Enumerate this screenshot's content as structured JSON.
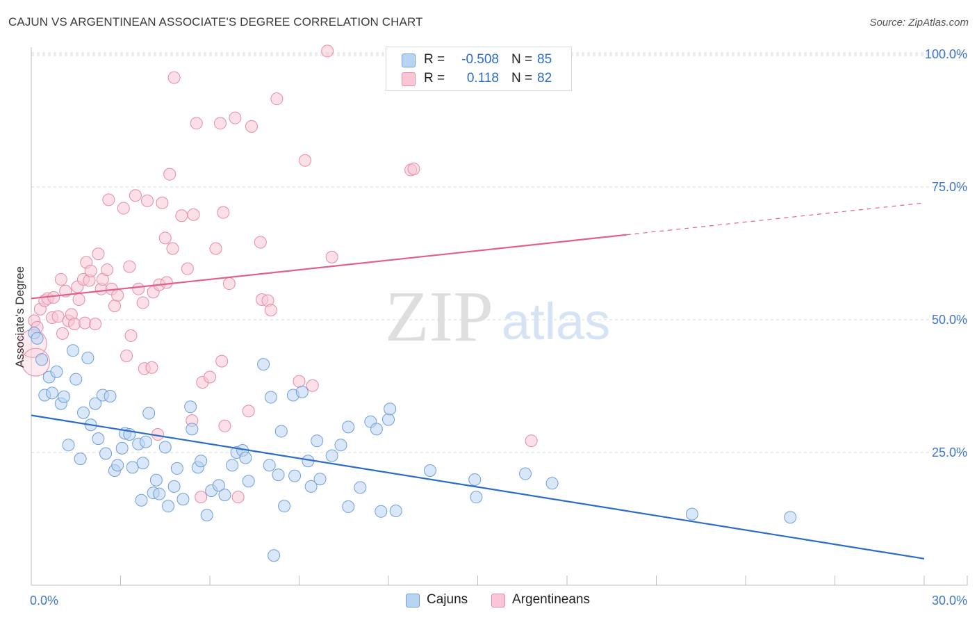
{
  "title": "CAJUN VS ARGENTINEAN ASSOCIATE'S DEGREE CORRELATION CHART",
  "source": "Source: ZipAtlas.com",
  "watermark": {
    "zip": "ZIP",
    "atlas": "atlas"
  },
  "legend_top": {
    "rows": [
      {
        "r_label": "R =",
        "r_value": "-0.508",
        "n_label": "N =",
        "n_value": "85"
      },
      {
        "r_label": "R =",
        "r_value": "0.118",
        "n_label": "N =",
        "n_value": "82"
      }
    ]
  },
  "colors": {
    "blue_fill": "#b9d3f3",
    "blue_stroke": "#6e9fd9",
    "blue_line": "#2b6cc9",
    "pink_fill": "#f8c6d4",
    "pink_stroke": "#e68aa8",
    "pink_line": "#e0608a",
    "axis_text": "#3f76c8",
    "grid": "#d9d9d9"
  },
  "chart_data": {
    "type": "scatter",
    "title": "CAJUN VS ARGENTINEAN ASSOCIATE'S DEGREE CORRELATION CHART",
    "xlabel": "",
    "ylabel": "Associate's Degree",
    "xlim": [
      0,
      30
    ],
    "ylim": [
      0,
      105
    ],
    "x_tick_labels": {
      "min": "0.0%",
      "max": "30.0%"
    },
    "y_ticks": [
      25,
      50,
      75,
      100
    ],
    "y_tick_labels": [
      "25.0%",
      "50.0%",
      "75.0%",
      "100.0%"
    ],
    "legend": [
      "Cajuns",
      "Argentineans"
    ],
    "series": [
      {
        "name": "Cajuns",
        "color": "#6e9fd9",
        "points": [
          [
            0.1,
            47.5
          ],
          [
            0.2,
            46.5
          ],
          [
            0.35,
            42.5
          ],
          [
            0.45,
            35.8
          ],
          [
            0.6,
            39.2
          ],
          [
            0.7,
            36.2
          ],
          [
            0.85,
            40.2
          ],
          [
            1.0,
            34.2
          ],
          [
            1.1,
            35.5
          ],
          [
            1.25,
            26.4
          ],
          [
            1.4,
            44.2
          ],
          [
            1.5,
            38.8
          ],
          [
            1.65,
            23.8
          ],
          [
            1.75,
            32.5
          ],
          [
            1.9,
            42.8
          ],
          [
            2.0,
            30.2
          ],
          [
            2.15,
            34.2
          ],
          [
            2.25,
            27.6
          ],
          [
            2.4,
            35.8
          ],
          [
            2.5,
            24.8
          ],
          [
            2.65,
            35.6
          ],
          [
            2.8,
            21.6
          ],
          [
            2.9,
            22.6
          ],
          [
            3.05,
            25.8
          ],
          [
            3.15,
            28.6
          ],
          [
            3.3,
            28.4
          ],
          [
            3.4,
            22.2
          ],
          [
            3.6,
            26.6
          ],
          [
            3.7,
            16.0
          ],
          [
            3.75,
            23.0
          ],
          [
            3.85,
            27.0
          ],
          [
            3.95,
            32.4
          ],
          [
            4.1,
            17.4
          ],
          [
            4.2,
            19.8
          ],
          [
            4.3,
            17.2
          ],
          [
            4.5,
            26.0
          ],
          [
            4.6,
            14.9
          ],
          [
            4.8,
            18.6
          ],
          [
            4.9,
            22.0
          ],
          [
            5.1,
            16.2
          ],
          [
            5.35,
            33.6
          ],
          [
            5.4,
            29.4
          ],
          [
            5.6,
            22.2
          ],
          [
            5.7,
            23.4
          ],
          [
            5.9,
            13.2
          ],
          [
            6.05,
            17.8
          ],
          [
            6.3,
            18.8
          ],
          [
            6.5,
            17.0
          ],
          [
            6.75,
            22.6
          ],
          [
            6.9,
            25.0
          ],
          [
            7.1,
            25.4
          ],
          [
            7.2,
            24.0
          ],
          [
            7.3,
            19.6
          ],
          [
            7.8,
            41.6
          ],
          [
            8.0,
            22.6
          ],
          [
            8.05,
            35.4
          ],
          [
            8.15,
            5.6
          ],
          [
            8.3,
            20.8
          ],
          [
            8.4,
            29.0
          ],
          [
            8.5,
            14.9
          ],
          [
            8.8,
            35.8
          ],
          [
            8.85,
            20.6
          ],
          [
            9.1,
            36.4
          ],
          [
            9.3,
            23.4
          ],
          [
            9.4,
            18.6
          ],
          [
            9.6,
            27.2
          ],
          [
            9.7,
            20.0
          ],
          [
            10.1,
            24.4
          ],
          [
            10.4,
            26.4
          ],
          [
            10.65,
            14.8
          ],
          [
            10.65,
            29.8
          ],
          [
            11.05,
            18.4
          ],
          [
            11.4,
            30.8
          ],
          [
            11.6,
            29.4
          ],
          [
            11.75,
            13.9
          ],
          [
            12.0,
            31.2
          ],
          [
            12.05,
            33.2
          ],
          [
            12.25,
            14.0
          ],
          [
            13.4,
            21.6
          ],
          [
            14.9,
            19.9
          ],
          [
            14.95,
            16.6
          ],
          [
            16.6,
            21.0
          ],
          [
            17.5,
            19.2
          ],
          [
            22.2,
            13.4
          ],
          [
            25.5,
            12.8
          ]
        ]
      },
      {
        "name": "Argentineans",
        "color": "#e68aa8",
        "points": [
          [
            0.1,
            49.8
          ],
          [
            0.2,
            48.6
          ],
          [
            0.3,
            52.0
          ],
          [
            0.45,
            53.6
          ],
          [
            0.55,
            54.0
          ],
          [
            0.7,
            50.4
          ],
          [
            0.75,
            54.2
          ],
          [
            0.9,
            50.6
          ],
          [
            1.0,
            57.6
          ],
          [
            1.05,
            47.4
          ],
          [
            1.15,
            55.4
          ],
          [
            1.25,
            49.8
          ],
          [
            1.35,
            51.0
          ],
          [
            1.45,
            49.2
          ],
          [
            1.55,
            56.2
          ],
          [
            1.6,
            53.8
          ],
          [
            1.75,
            57.6
          ],
          [
            1.8,
            49.4
          ],
          [
            1.85,
            60.8
          ],
          [
            1.95,
            57.4
          ],
          [
            2.0,
            59.2
          ],
          [
            2.15,
            49.2
          ],
          [
            2.25,
            62.4
          ],
          [
            2.35,
            55.8
          ],
          [
            2.4,
            57.6
          ],
          [
            2.55,
            59.4
          ],
          [
            2.6,
            72.6
          ],
          [
            2.7,
            55.8
          ],
          [
            2.8,
            52.6
          ],
          [
            2.9,
            54.6
          ],
          [
            3.1,
            71.0
          ],
          [
            3.2,
            43.2
          ],
          [
            3.3,
            60.0
          ],
          [
            3.35,
            47.0
          ],
          [
            3.5,
            73.4
          ],
          [
            3.6,
            55.8
          ],
          [
            3.75,
            53.2
          ],
          [
            3.8,
            40.8
          ],
          [
            3.9,
            72.4
          ],
          [
            4.05,
            41.0
          ],
          [
            4.1,
            55.2
          ],
          [
            4.25,
            28.4
          ],
          [
            4.3,
            56.6
          ],
          [
            4.4,
            72.0
          ],
          [
            4.5,
            65.4
          ],
          [
            4.55,
            57.0
          ],
          [
            4.65,
            77.4
          ],
          [
            4.75,
            63.4
          ],
          [
            4.8,
            95.6
          ],
          [
            5.05,
            69.6
          ],
          [
            5.25,
            59.6
          ],
          [
            5.4,
            31.0
          ],
          [
            5.45,
            69.8
          ],
          [
            5.55,
            87.0
          ],
          [
            5.7,
            16.6
          ],
          [
            5.75,
            38.2
          ],
          [
            6.0,
            39.2
          ],
          [
            6.2,
            63.4
          ],
          [
            6.35,
            87.0
          ],
          [
            6.4,
            42.2
          ],
          [
            6.45,
            70.2
          ],
          [
            6.5,
            30.0
          ],
          [
            6.65,
            56.8
          ],
          [
            6.85,
            88.0
          ],
          [
            6.95,
            16.6
          ],
          [
            7.3,
            32.8
          ],
          [
            7.4,
            86.4
          ],
          [
            7.7,
            64.6
          ],
          [
            7.75,
            53.8
          ],
          [
            7.95,
            53.6
          ],
          [
            8.05,
            51.8
          ],
          [
            8.25,
            91.6
          ],
          [
            9.0,
            38.4
          ],
          [
            9.2,
            80.0
          ],
          [
            9.45,
            37.6
          ],
          [
            9.95,
            100.6
          ],
          [
            10.1,
            61.8
          ],
          [
            12.75,
            78.2
          ],
          [
            12.85,
            78.4
          ],
          [
            16.8,
            27.2
          ],
          [
            0.05,
            45.5
          ],
          [
            0.15,
            42.0
          ]
        ]
      }
    ],
    "trendlines": [
      {
        "series": "Cajuns",
        "x": [
          0,
          30
        ],
        "y": [
          32.0,
          5.0
        ]
      },
      {
        "series": "Argentineans",
        "x": [
          0,
          20
        ],
        "y": [
          54.0,
          66.0
        ],
        "dashed_extension_to": [
          30,
          72.0
        ]
      }
    ]
  }
}
